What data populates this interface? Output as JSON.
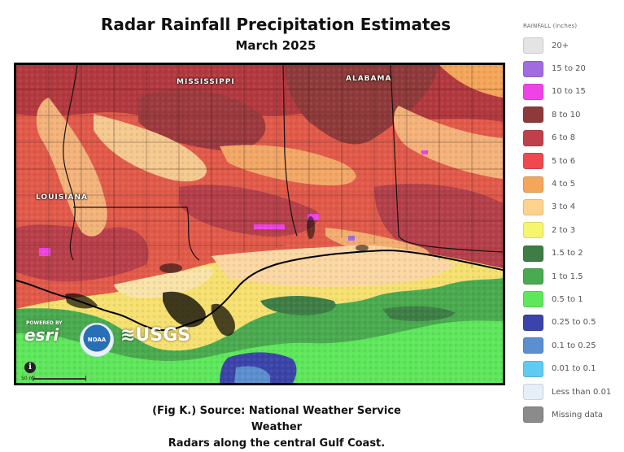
{
  "header": {
    "title": "Radar Rainfall Precipitation Estimates",
    "subtitle": "March 2025"
  },
  "map": {
    "labels": {
      "mississippi": "MISSISSIPPI",
      "alabama": "ALABAMA",
      "louisiana": "LOUISIANA"
    },
    "credits": {
      "powered_by": "POWERED BY",
      "esri": "esri",
      "noaa": "NOAA",
      "usgs": "≋USGS"
    },
    "info_glyph": "i",
    "scale_label": "50 mi"
  },
  "caption": {
    "line1": "(Fig K.) Source: National Weather Service Weather",
    "line2": "Radars along the central Gulf Coast."
  },
  "legend": {
    "title": "RAINFALL (inches)",
    "items": [
      {
        "label": "20+",
        "color": "#e4e4e4"
      },
      {
        "label": "15 to 20",
        "color": "#a06ce0"
      },
      {
        "label": "10 to 15",
        "color": "#f043e6"
      },
      {
        "label": "8 to 10",
        "color": "#8f3a3a"
      },
      {
        "label": "6 to 8",
        "color": "#c0404a"
      },
      {
        "label": "5 to 6",
        "color": "#f0484f"
      },
      {
        "label": "4 to 5",
        "color": "#f4a65a"
      },
      {
        "label": "3 to 4",
        "color": "#fcd28c"
      },
      {
        "label": "2 to 3",
        "color": "#f6f56e"
      },
      {
        "label": "1.5 to 2",
        "color": "#3e7d45"
      },
      {
        "label": "1 to 1.5",
        "color": "#4aaa4f"
      },
      {
        "label": "0.5 to 1",
        "color": "#5fe75c"
      },
      {
        "label": "0.25 to 0.5",
        "color": "#3b44a8"
      },
      {
        "label": "0.1 to 0.25",
        "color": "#5b8fcf"
      },
      {
        "label": "0.01 to 0.1",
        "color": "#5fcbf0"
      },
      {
        "label": "Less than 0.01",
        "color": "#e6eef8"
      },
      {
        "label": "Missing data",
        "color": "#8b8b8b"
      }
    ]
  }
}
